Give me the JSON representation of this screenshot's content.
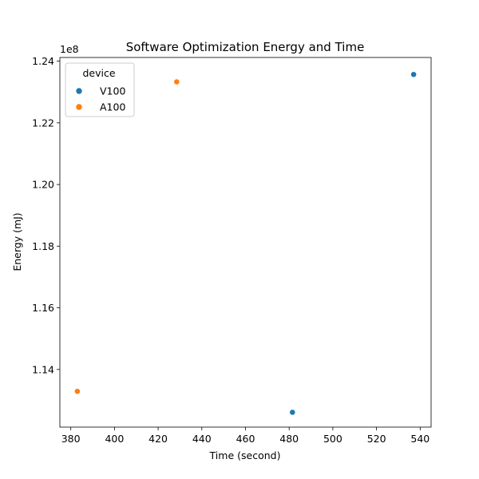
{
  "chart_data": {
    "type": "scatter",
    "title": "Software Optimization Energy and Time",
    "xlabel": "Time (second)",
    "ylabel": "Energy (mJ)",
    "y_offset_label": "1e8",
    "xlim": [
      375,
      545
    ],
    "ylim": [
      1.1213,
      1.2412
    ],
    "y_scale_factor": 100000000,
    "xticks": [
      380,
      400,
      420,
      440,
      460,
      480,
      500,
      520,
      540
    ],
    "yticks": [
      1.14,
      1.16,
      1.18,
      1.2,
      1.22,
      1.24
    ],
    "ytick_labels": [
      "1.14",
      "1.16",
      "1.18",
      "1.20",
      "1.22",
      "1.24"
    ],
    "grid": false,
    "legend": {
      "title": "device",
      "placement": "top-left"
    },
    "series": [
      {
        "name": "V100",
        "color": "#1f77b4",
        "points": [
          {
            "x": 481.5,
            "y": 1.1261
          },
          {
            "x": 537.0,
            "y": 1.2357
          }
        ]
      },
      {
        "name": "A100",
        "color": "#ff7f0e",
        "points": [
          {
            "x": 383.0,
            "y": 1.1329
          },
          {
            "x": 428.5,
            "y": 1.2333
          }
        ]
      }
    ]
  }
}
